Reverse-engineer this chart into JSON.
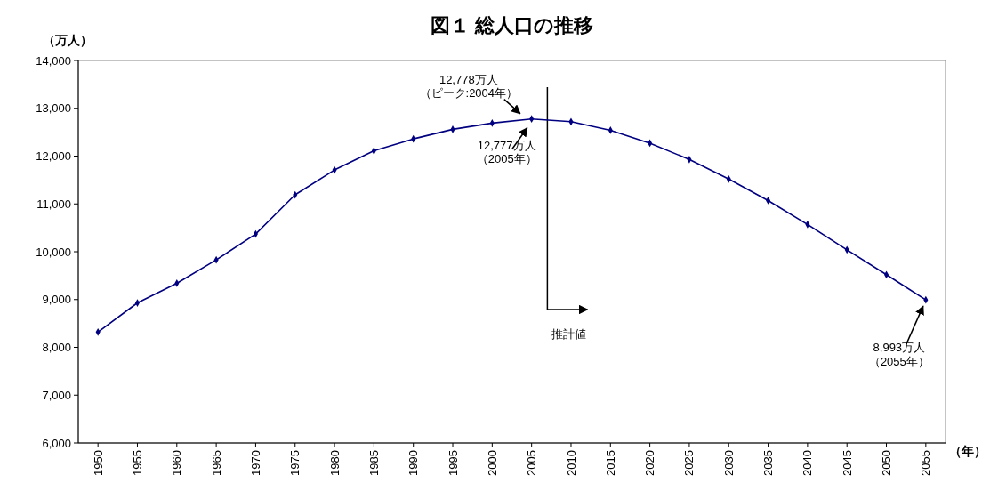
{
  "chart_data": {
    "type": "line",
    "title": "図１ 総人口の推移",
    "ylabel": "（万人）",
    "xlabel": "（年）",
    "x": [
      1950,
      1955,
      1960,
      1965,
      1970,
      1975,
      1980,
      1985,
      1990,
      1995,
      2000,
      2005,
      2010,
      2015,
      2020,
      2025,
      2030,
      2035,
      2040,
      2045,
      2050,
      2055
    ],
    "series": [
      {
        "color": "#000080",
        "values": [
          8320,
          8930,
          9340,
          9830,
          10370,
          11190,
          11710,
          12110,
          12360,
          12560,
          12690,
          12777,
          12720,
          12540,
          12270,
          11930,
          11520,
          11070,
          10570,
          10040,
          9520,
          8993
        ]
      }
    ],
    "xlim": [
      1947.5,
      2057.5
    ],
    "xticks": [
      1950,
      1955,
      1960,
      1965,
      1970,
      1975,
      1980,
      1985,
      1990,
      1995,
      2000,
      2005,
      2010,
      2015,
      2020,
      2025,
      2030,
      2035,
      2040,
      2045,
      2050,
      2055
    ],
    "ylim": [
      6000,
      14000
    ],
    "yticks": [
      {
        "value": 6000,
        "label": "6,000"
      },
      {
        "value": 7000,
        "label": "7,000"
      },
      {
        "value": 8000,
        "label": "8,000"
      },
      {
        "value": 9000,
        "label": "9,000"
      },
      {
        "value": 10000,
        "label": "10,000"
      },
      {
        "value": 11000,
        "label": "11,000"
      },
      {
        "value": 12000,
        "label": "12,000"
      },
      {
        "value": 13000,
        "label": "13,000"
      },
      {
        "value": 14000,
        "label": "14,000"
      }
    ],
    "grid": false,
    "marker": "diamond",
    "line_style": "solid",
    "ref_lines": [
      {
        "axis": "x",
        "value": 2007,
        "label": "推計値",
        "color": "#000000"
      }
    ],
    "annotations": [
      {
        "text": "12,778万人（ピーク:2004年）",
        "x": 2004,
        "y": 12778
      },
      {
        "text": "12,777万人（2005年）",
        "x": 2005,
        "y": 12777
      },
      {
        "text": "8,993万人（2055年）",
        "x": 2055,
        "y": 8993
      }
    ]
  }
}
